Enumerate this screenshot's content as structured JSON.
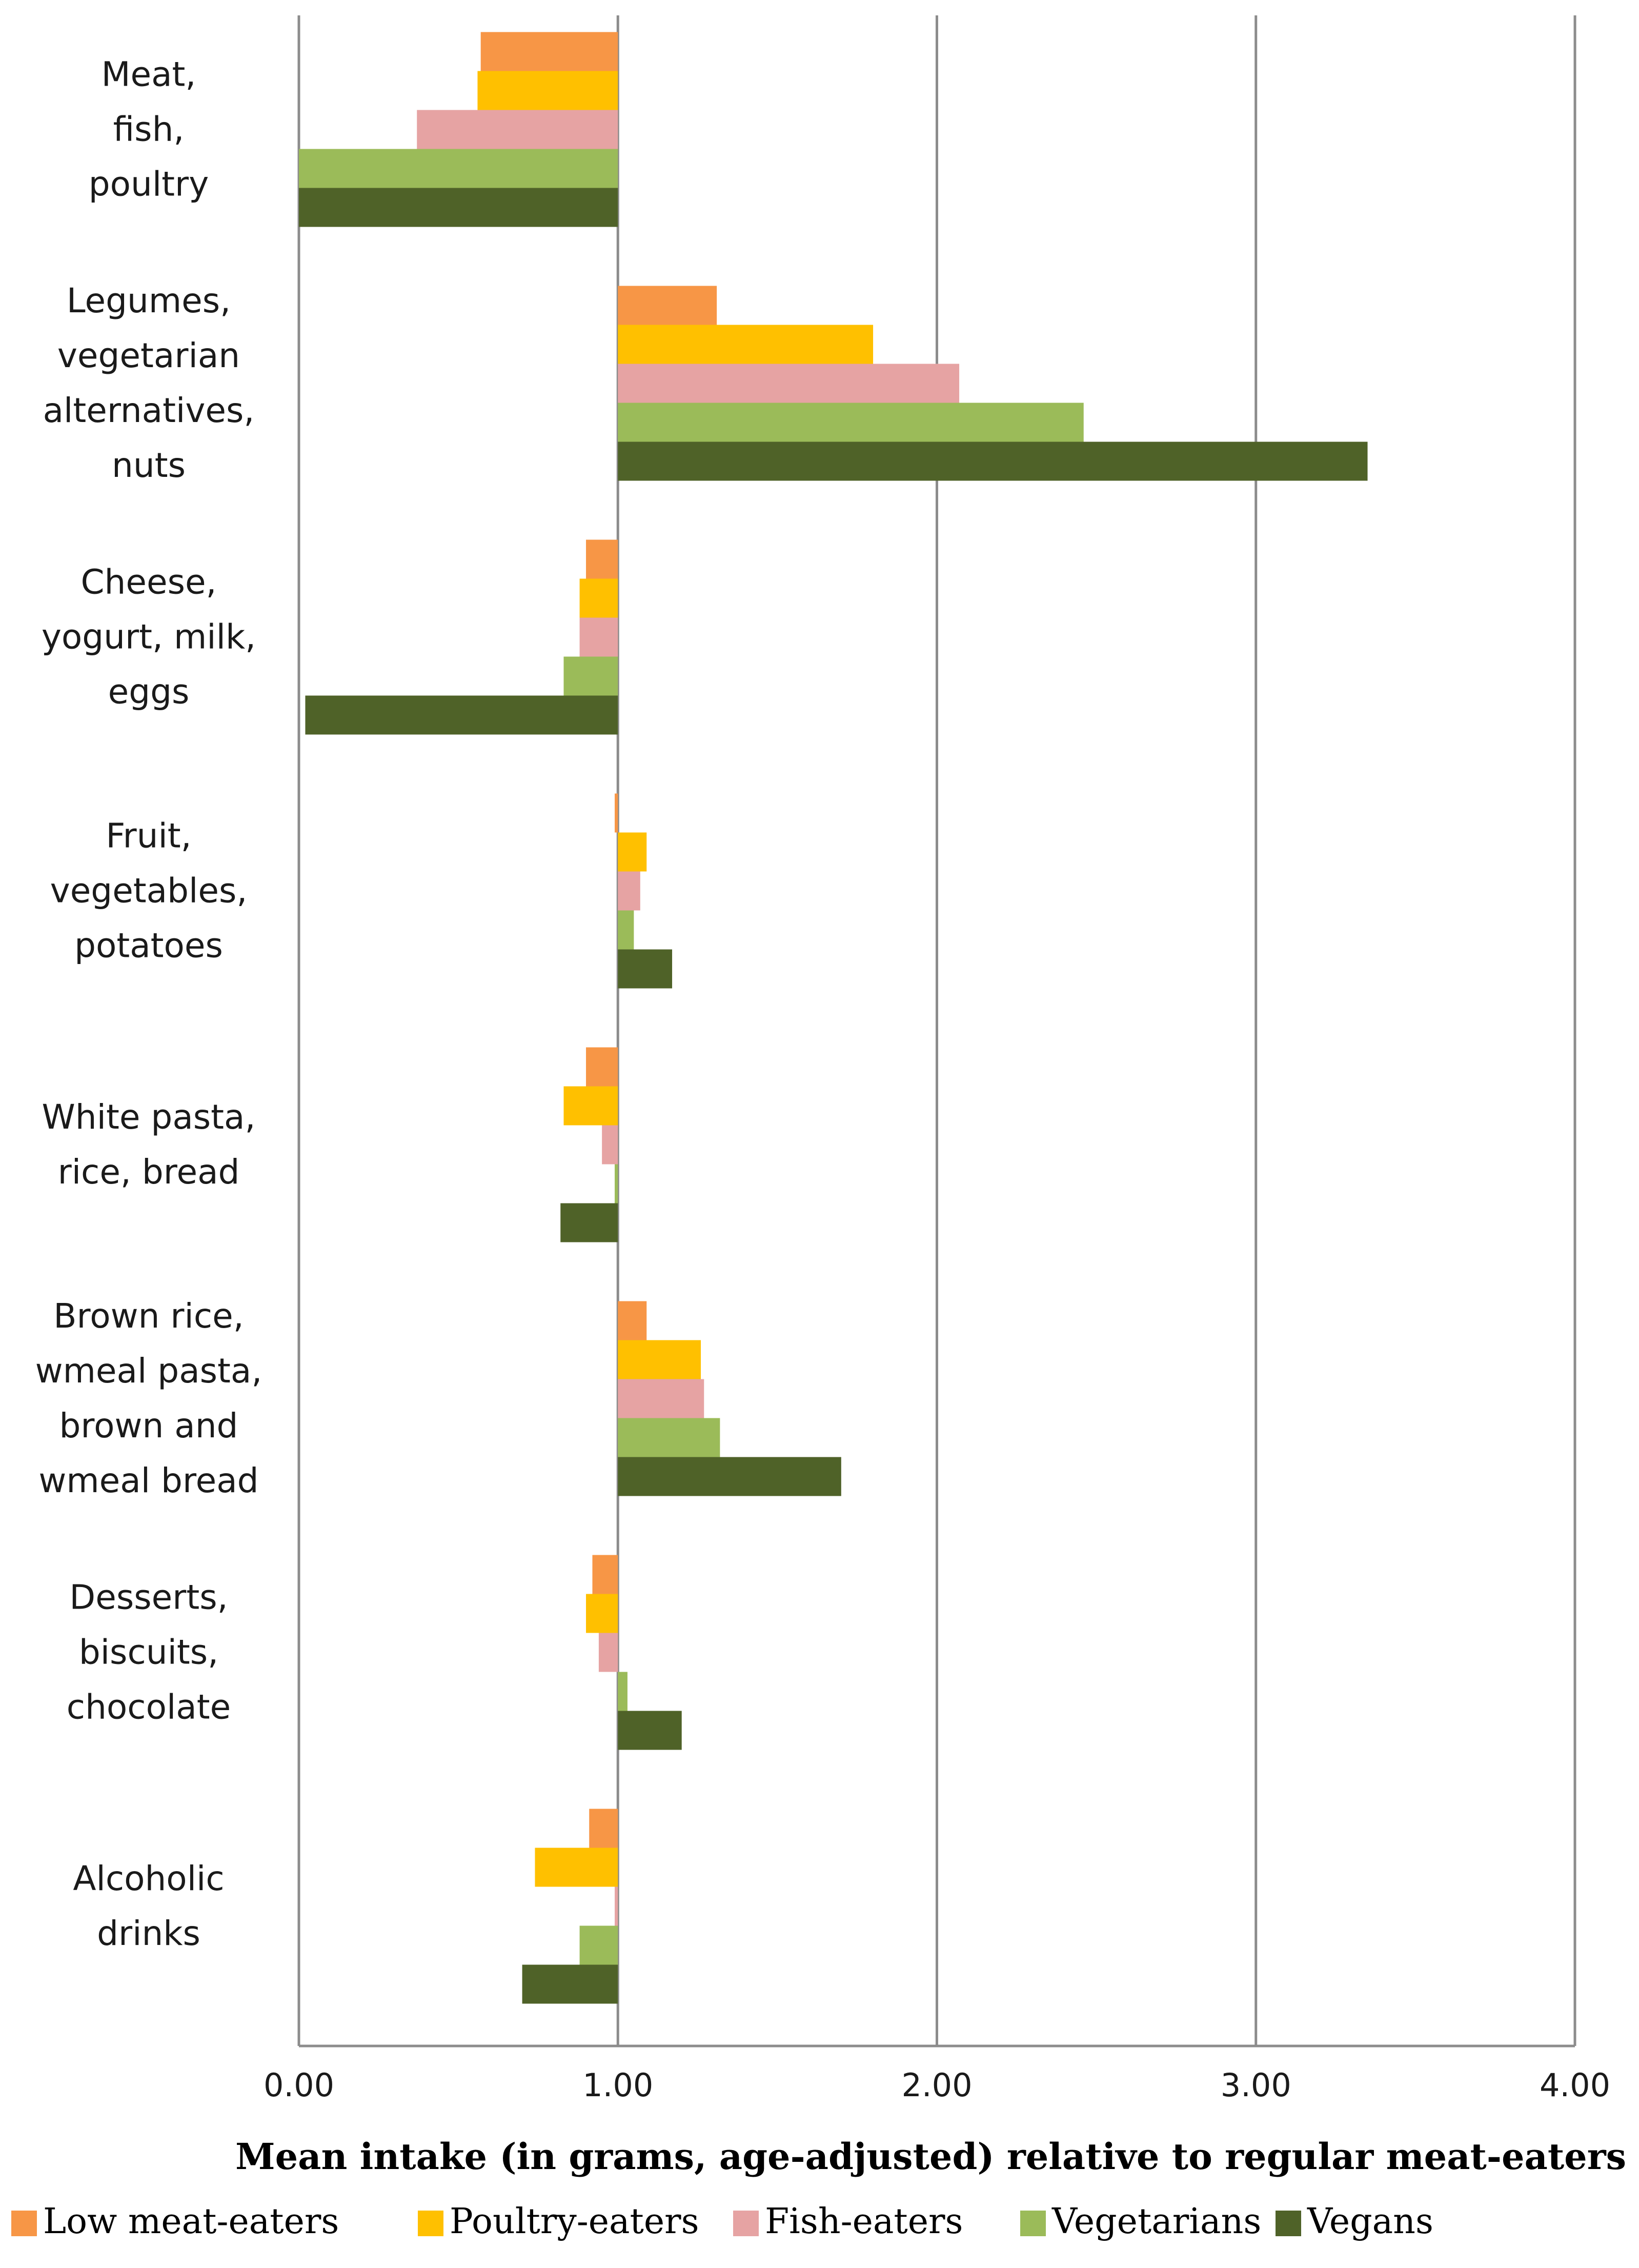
{
  "chart_data": {
    "type": "bar",
    "orientation": "horizontal",
    "title": "",
    "xlabel": "Mean intake (in grams, age-adjusted) relative to regular meat-eaters",
    "ylabel": "",
    "xlim": [
      0,
      4
    ],
    "baseline": 1.0,
    "xticks": [
      "0.00",
      "1.00",
      "2.00",
      "3.00",
      "4.00"
    ],
    "grid": true,
    "legend_position": "bottom",
    "categories": [
      [
        "Meat,",
        "fish,",
        "poultry"
      ],
      [
        "Legumes,",
        "vegetarian",
        "alternatives,",
        "nuts"
      ],
      [
        "Cheese,",
        "yogurt, milk,",
        "eggs"
      ],
      [
        "Fruit,",
        "vegetables,",
        "potatoes"
      ],
      [
        "White pasta,",
        "rice, bread"
      ],
      [
        "Brown rice,",
        "wmeal pasta,",
        "brown and",
        "wmeal bread"
      ],
      [
        "Desserts,",
        "biscuits,",
        "chocolate"
      ],
      [
        "Alcoholic",
        "drinks"
      ]
    ],
    "series": [
      {
        "name": "Low meat-eaters",
        "color": "#f79646",
        "values": [
          0.57,
          1.31,
          0.9,
          0.99,
          0.9,
          1.09,
          0.92,
          0.91
        ]
      },
      {
        "name": "Poultry-eaters",
        "color": "#ffc000",
        "values": [
          0.56,
          1.8,
          0.88,
          1.09,
          0.83,
          1.26,
          0.9,
          0.74
        ]
      },
      {
        "name": "Fish-eaters",
        "color": "#e6a3a3",
        "values": [
          0.37,
          2.07,
          0.88,
          1.07,
          0.95,
          1.27,
          0.94,
          0.99
        ]
      },
      {
        "name": "Vegetarians",
        "color": "#9bbb59",
        "values": [
          0.0,
          2.46,
          0.83,
          1.05,
          0.99,
          1.32,
          1.03,
          0.88
        ]
      },
      {
        "name": "Vegans",
        "color": "#4f6228",
        "values": [
          0.0,
          3.35,
          0.02,
          1.17,
          0.82,
          1.7,
          1.2,
          0.7
        ]
      }
    ]
  }
}
